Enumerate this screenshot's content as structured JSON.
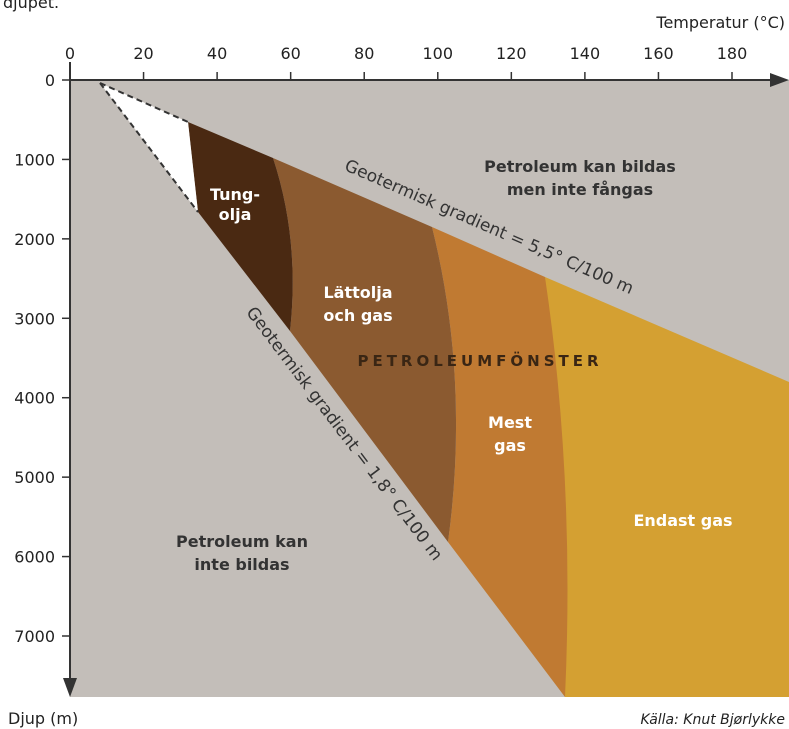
{
  "header": {
    "caption": "djupet."
  },
  "x_axis": {
    "label": "Temperatur (°C)",
    "ticks": [
      0,
      20,
      40,
      60,
      80,
      100,
      120,
      140,
      160,
      180
    ]
  },
  "y_axis": {
    "label": "Djup (m)",
    "ticks": [
      0,
      1000,
      2000,
      3000,
      4000,
      5000,
      6000,
      7000
    ]
  },
  "source": "Källa: Knut Bjørlykke",
  "regions": {
    "heavy_oil": [
      "Tung-",
      "olja"
    ],
    "light_oil": [
      "Lättolja",
      "och gas"
    ],
    "mostly_gas": [
      "Mest",
      "gas"
    ],
    "only_gas": [
      "Endast gas"
    ],
    "above": [
      "Petroleum kan bildas",
      "men inte fångas"
    ],
    "below": [
      "Petroleum kan",
      "inte bildas"
    ],
    "window": "PETROLEUMFÖNSTER"
  },
  "gradients": {
    "high": "Geotermisk gradient = 5,5° C/100 m",
    "low": "Geotermisk gradient = 1,8° C/100 m"
  }
}
